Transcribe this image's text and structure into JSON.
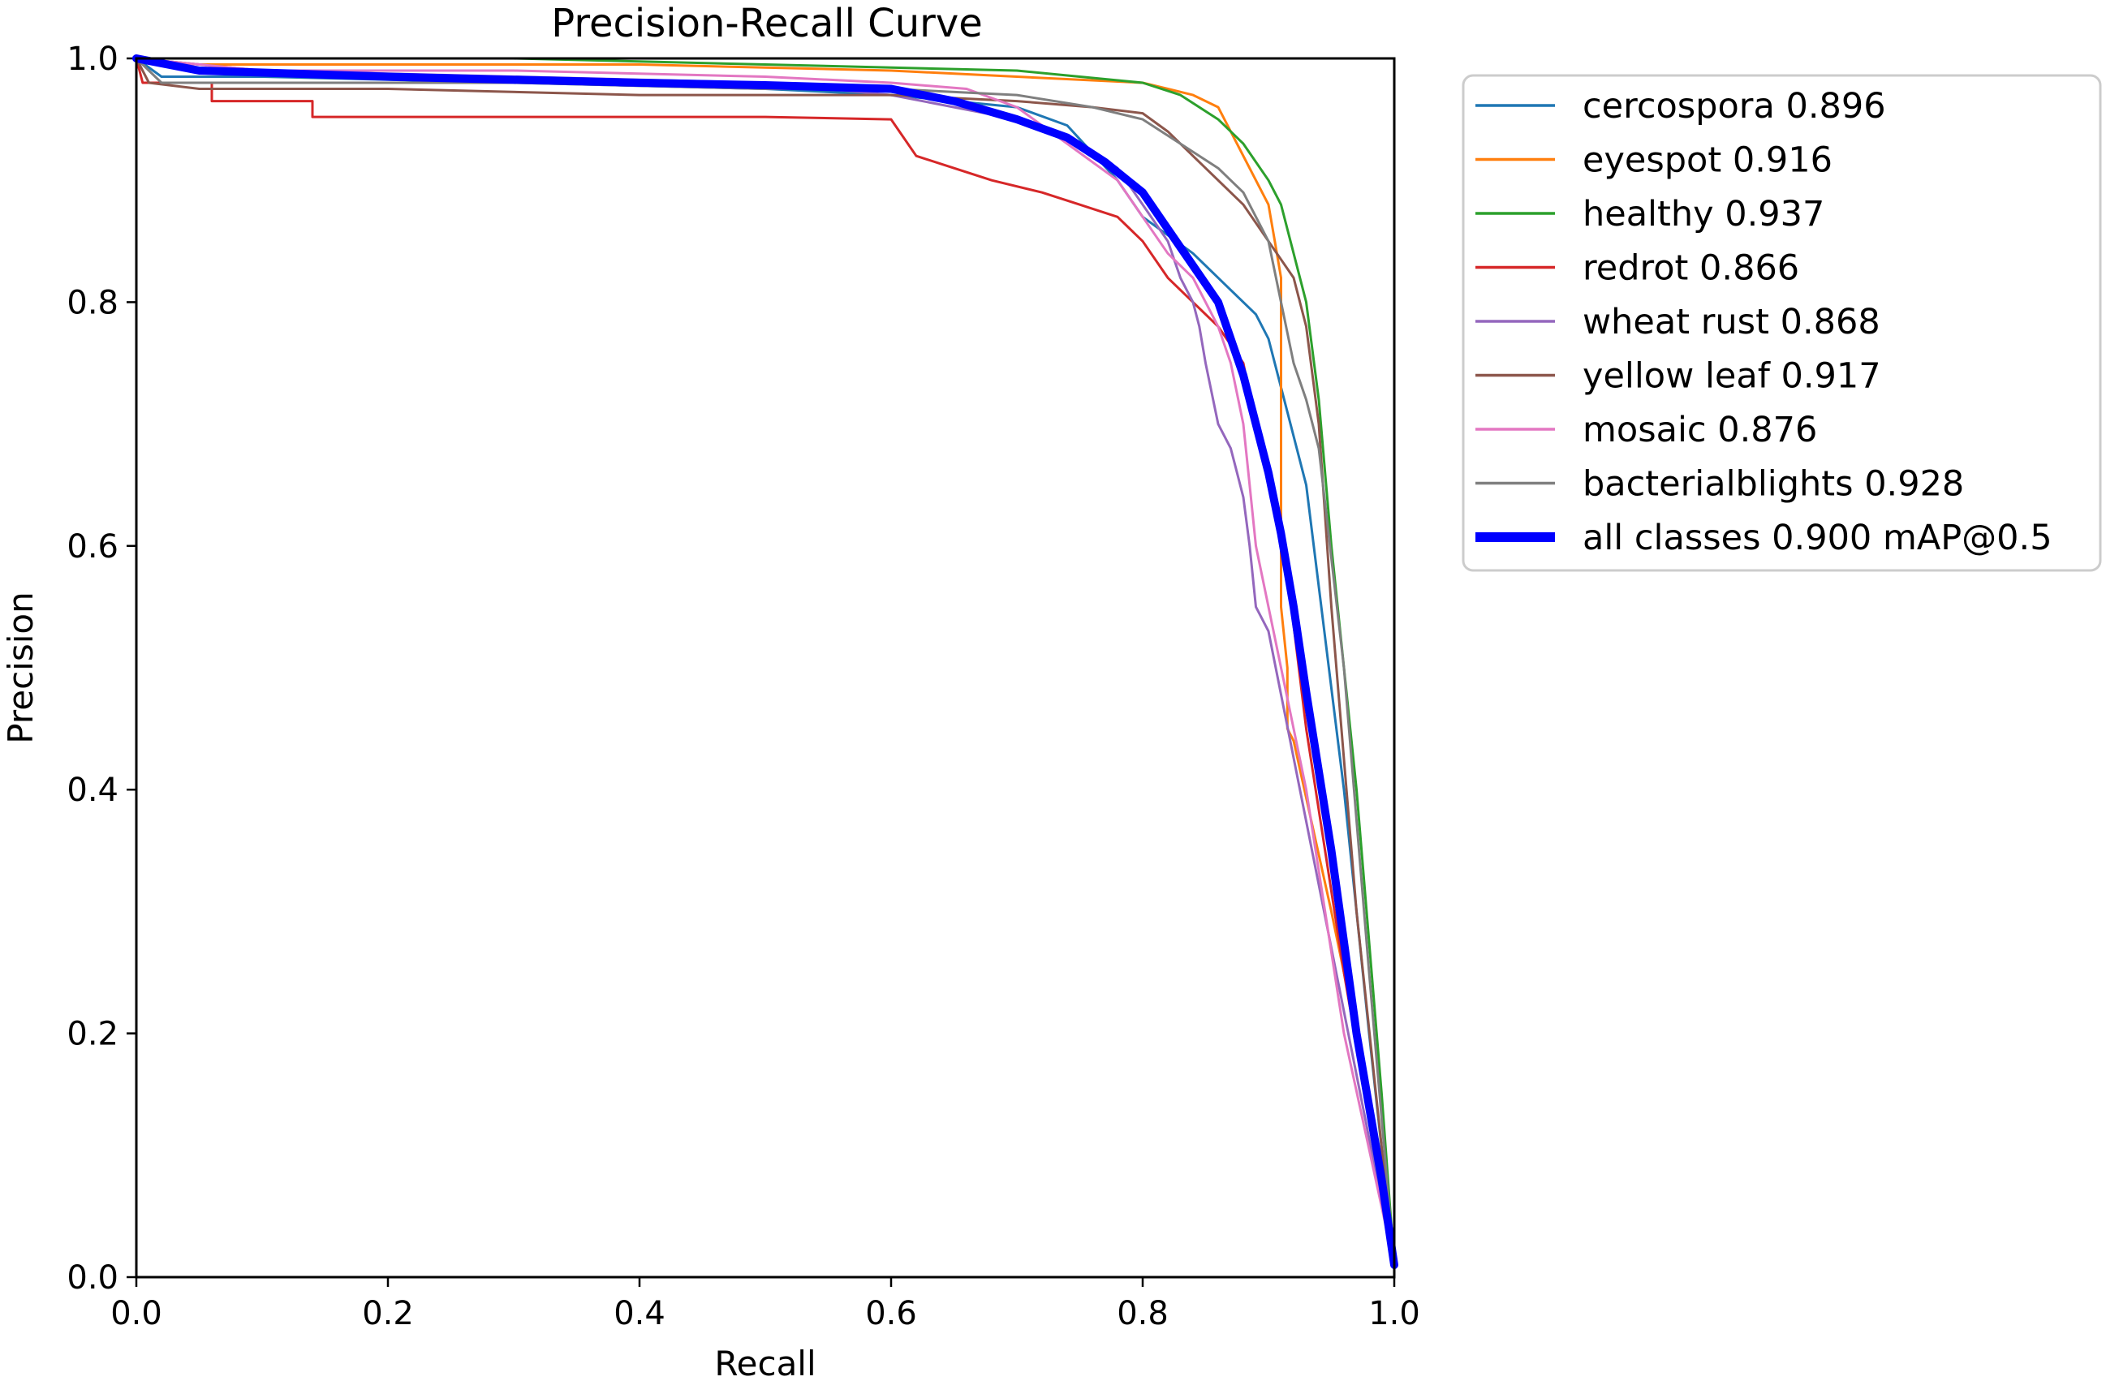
{
  "chart_data": {
    "type": "line",
    "title": "Precision-Recall Curve",
    "xlabel": "Recall",
    "ylabel": "Precision",
    "xlim": [
      0,
      1
    ],
    "ylim": [
      0,
      1
    ],
    "xticks": [
      "0.0",
      "0.2",
      "0.4",
      "0.6",
      "0.8",
      "1.0"
    ],
    "yticks": [
      "0.0",
      "0.2",
      "0.4",
      "0.6",
      "0.8",
      "1.0"
    ],
    "legend_position": "outside-right",
    "series": [
      {
        "name": "cercospora",
        "label": "cercospora 0.896",
        "color": "#1f77b4",
        "x": [
          0,
          0.02,
          0.1,
          0.3,
          0.5,
          0.6,
          0.7,
          0.74,
          0.78,
          0.8,
          0.84,
          0.87,
          0.89,
          0.9,
          0.91,
          0.93,
          0.96,
          0.98,
          1.0
        ],
        "y": [
          1.0,
          0.985,
          0.985,
          0.98,
          0.975,
          0.97,
          0.96,
          0.945,
          0.9,
          0.87,
          0.84,
          0.81,
          0.79,
          0.77,
          0.73,
          0.65,
          0.4,
          0.2,
          0.01
        ]
      },
      {
        "name": "eyespot",
        "label": "eyespot 0.916",
        "color": "#ff7f0e",
        "x": [
          0,
          0.05,
          0.2,
          0.4,
          0.6,
          0.7,
          0.8,
          0.82,
          0.84,
          0.86,
          0.87,
          0.88,
          0.89,
          0.9,
          0.905,
          0.91,
          0.91,
          0.915,
          0.915,
          0.92,
          0.95,
          0.98,
          1.0
        ],
        "y": [
          1.0,
          0.995,
          0.995,
          0.995,
          0.99,
          0.985,
          0.98,
          0.975,
          0.97,
          0.96,
          0.94,
          0.92,
          0.9,
          0.88,
          0.85,
          0.82,
          0.55,
          0.5,
          0.45,
          0.44,
          0.3,
          0.15,
          0.01
        ]
      },
      {
        "name": "healthy",
        "label": "healthy 0.937",
        "color": "#2ca02c",
        "x": [
          0,
          0.1,
          0.3,
          0.5,
          0.7,
          0.75,
          0.8,
          0.83,
          0.86,
          0.88,
          0.9,
          0.91,
          0.92,
          0.93,
          0.94,
          0.95,
          0.97,
          0.99,
          1.0
        ],
        "y": [
          1.0,
          1.0,
          1.0,
          0.995,
          0.99,
          0.985,
          0.98,
          0.97,
          0.95,
          0.93,
          0.9,
          0.88,
          0.84,
          0.8,
          0.72,
          0.6,
          0.4,
          0.15,
          0.01
        ]
      },
      {
        "name": "redrot",
        "label": "redrot 0.866",
        "color": "#d62728",
        "x": [
          0,
          0.005,
          0.01,
          0.06,
          0.06,
          0.14,
          0.14,
          0.3,
          0.5,
          0.6,
          0.62,
          0.65,
          0.68,
          0.72,
          0.75,
          0.78,
          0.8,
          0.82,
          0.84,
          0.86,
          0.88,
          0.89,
          0.91,
          0.93,
          0.96,
          1.0
        ],
        "y": [
          1.0,
          0.98,
          0.98,
          0.98,
          0.965,
          0.965,
          0.952,
          0.952,
          0.952,
          0.95,
          0.92,
          0.91,
          0.9,
          0.89,
          0.88,
          0.87,
          0.85,
          0.82,
          0.8,
          0.78,
          0.75,
          0.7,
          0.62,
          0.45,
          0.25,
          0.01
        ]
      },
      {
        "name": "wheat rust",
        "label": "wheat rust 0.868",
        "color": "#9467bd",
        "x": [
          0,
          0.1,
          0.3,
          0.5,
          0.6,
          0.7,
          0.75,
          0.78,
          0.8,
          0.82,
          0.83,
          0.84,
          0.845,
          0.85,
          0.86,
          0.87,
          0.875,
          0.88,
          0.885,
          0.89,
          0.9,
          1.0
        ],
        "y": [
          1.0,
          0.99,
          0.985,
          0.98,
          0.97,
          0.95,
          0.93,
          0.91,
          0.88,
          0.85,
          0.82,
          0.8,
          0.78,
          0.75,
          0.7,
          0.68,
          0.66,
          0.64,
          0.6,
          0.55,
          0.53,
          0.01
        ]
      },
      {
        "name": "yellow leaf",
        "label": "yellow leaf 0.917",
        "color": "#8c564b",
        "x": [
          0,
          0.01,
          0.05,
          0.2,
          0.4,
          0.6,
          0.7,
          0.76,
          0.8,
          0.82,
          0.84,
          0.86,
          0.88,
          0.9,
          0.92,
          0.93,
          0.94,
          0.95,
          0.97,
          1.0
        ],
        "y": [
          1.0,
          0.98,
          0.975,
          0.975,
          0.97,
          0.97,
          0.965,
          0.96,
          0.955,
          0.94,
          0.92,
          0.9,
          0.88,
          0.85,
          0.82,
          0.78,
          0.7,
          0.55,
          0.3,
          0.01
        ]
      },
      {
        "name": "mosaic",
        "label": "mosaic 0.876",
        "color": "#e377c2",
        "x": [
          0,
          0.1,
          0.3,
          0.5,
          0.6,
          0.66,
          0.7,
          0.74,
          0.78,
          0.8,
          0.82,
          0.84,
          0.86,
          0.87,
          0.88,
          0.885,
          0.89,
          0.9,
          0.91,
          0.93,
          0.96,
          1.0
        ],
        "y": [
          1.0,
          0.99,
          0.99,
          0.985,
          0.98,
          0.975,
          0.96,
          0.93,
          0.9,
          0.87,
          0.84,
          0.82,
          0.78,
          0.75,
          0.7,
          0.65,
          0.6,
          0.55,
          0.5,
          0.4,
          0.2,
          0.01
        ]
      },
      {
        "name": "bacterialblights",
        "label": "bacterialblights 0.928",
        "color": "#7f7f7f",
        "x": [
          0,
          0.01,
          0.02,
          0.1,
          0.3,
          0.5,
          0.6,
          0.7,
          0.76,
          0.8,
          0.83,
          0.86,
          0.88,
          0.9,
          0.91,
          0.92,
          0.93,
          0.94,
          0.96,
          0.98,
          1.0
        ],
        "y": [
          1.0,
          0.99,
          0.98,
          0.98,
          0.98,
          0.975,
          0.975,
          0.97,
          0.96,
          0.95,
          0.93,
          0.91,
          0.89,
          0.85,
          0.8,
          0.75,
          0.72,
          0.68,
          0.5,
          0.25,
          0.01
        ]
      },
      {
        "name": "all classes",
        "label": "all classes 0.900 mAP@0.5",
        "color": "#0000ff",
        "bold": true,
        "x": [
          0,
          0.05,
          0.2,
          0.4,
          0.5,
          0.6,
          0.65,
          0.7,
          0.74,
          0.77,
          0.8,
          0.82,
          0.84,
          0.86,
          0.87,
          0.88,
          0.89,
          0.9,
          0.91,
          0.92,
          0.93,
          0.95,
          0.97,
          0.99,
          1.0
        ],
        "y": [
          1.0,
          0.99,
          0.985,
          0.98,
          0.978,
          0.975,
          0.965,
          0.95,
          0.935,
          0.915,
          0.89,
          0.86,
          0.83,
          0.8,
          0.77,
          0.74,
          0.7,
          0.66,
          0.61,
          0.55,
          0.48,
          0.35,
          0.2,
          0.08,
          0.01
        ]
      }
    ]
  }
}
